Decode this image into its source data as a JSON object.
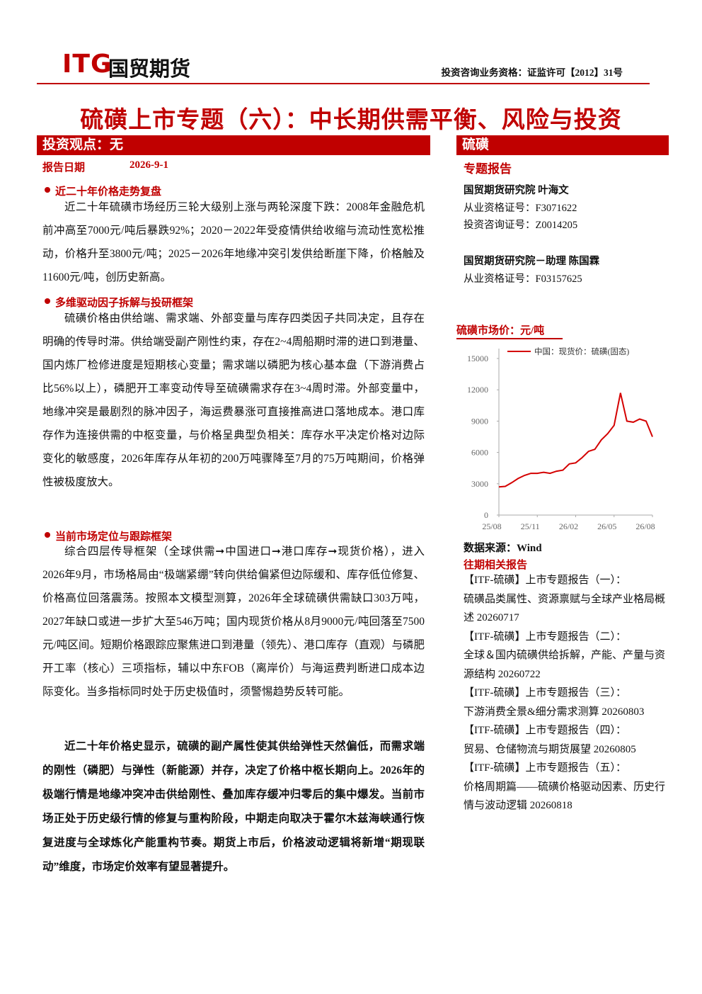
{
  "header": {
    "logo_en": "ITG",
    "logo_cn": "国贸期货",
    "license": "投资咨询业务资格：证监许可【2012】31号"
  },
  "title": "硫磺上市专题（六）：中长期供需平衡、风险与投资",
  "left": {
    "view_bar": "投资观点：无",
    "date_label": "报告日期",
    "date": "2026-9-1",
    "sections": [
      {
        "heading": "近二十年价格走势复盘",
        "text": "近二十年硫磺市场经历三轮大级别上涨与两轮深度下跌：2008年金融危机前冲高至7000元/吨后暴跌92%；2020－2022年受疫情供给收缩与流动性宽松推动，价格升至3800元/吨；2025－2026年地缘冲突引发供给断崖下降，价格触及11600元/吨，创历史新高。"
      },
      {
        "heading": "多维驱动因子拆解与投研框架",
        "text": "硫磺价格由供给端、需求端、外部变量与库存四类因子共同决定，且存在明确的传导时滞。供给端受副产刚性约束，存在2~4周船期时滞的进口到港量、国内炼厂检修进度是短期核心变量；需求端以磷肥为核心基本盘（下游消费占比56%以上），磷肥开工率变动传导至硫磺需求存在3~4周时滞。外部变量中，地缘冲突是最剧烈的脉冲因子，海运费暴涨可直接推高进口落地成本。港口库存作为连接供需的中枢变量，与价格呈典型负相关：库存水平决定价格对边际变化的敏感度，2026年库存从年初的200万吨骤降至7月的75万吨期间，价格弹性被极度放大。"
      },
      {
        "heading": "当前市场定位与跟踪框架",
        "text": "综合四层传导框架（全球供需➞中国进口➞港口库存➞现货价格），进入2026年9月，市场格局由“极端紧绷”转向供给偏紧但边际缓和、库存低位修复、价格高位回落震荡。按照本文模型测算，2026年全球硫磺供需缺口303万吨，2027年缺口或进一步扩大至546万吨；国内现货价格从8月9000元/吨回落至7500元/吨区间。短期价格跟踪应聚焦进口到港量（领先）、港口库存（直观）与磷肥开工率（核心）三项指标，辅以中东FOB（离岸价）与海运费判断进口成本边际变化。当多指标同时处于历史极值时，须警惕趋势反转可能。"
      }
    ],
    "summary": "近二十年价格史显示，硫磺的副产属性使其供给弹性天然偏低，而需求端的刚性（磷肥）与弹性（新能源）并存，决定了价格中枢长期向上。2026年的极端行情是地缘冲突冲击供给刚性、叠加库存缓冲归零后的集中爆发。当前市场正处于历史级行情的修复与重构阶段，中期走向取决于霍尔木兹海峡通行恢复进度与全球炼化产能重构节奏。期货上市后，价格波动逻辑将新增“期现联动”维度，市场定价效率有望显著提升。"
  },
  "right": {
    "category": "硫磺",
    "report_type": "专题报告",
    "authors": [
      {
        "name": "国贸期货研究院 叶海文",
        "lines": [
          "从业资格证号：F3071622",
          "投资咨询证号：Z0014205"
        ]
      },
      {
        "name": "国贸期货研究院－助理 陈国霖",
        "lines": [
          "从业资格证号：F03157625"
        ]
      }
    ],
    "chart_title": "硫磺市场价：元/吨",
    "source": "数据来源：Wind",
    "related_title": "往期相关报告",
    "related": [
      {
        "title": "【ITF-硫磺】上市专题报告（一）：",
        "body": "硫磺品类属性、资源禀赋与全球产业格局概述 20260717"
      },
      {
        "title": "【ITF-硫磺】上市专题报告（二）：",
        "body": "全球＆国内硫磺供给拆解，产能、产量与资源结构 20260722"
      },
      {
        "title": "【ITF-硫磺】上市专题报告（三）：",
        "body": "下游消费全景&细分需求测算 20260803"
      },
      {
        "title": "【ITF-硫磺】上市专题报告（四）：",
        "body": "贸易、仓储物流与期货展望 20260805"
      },
      {
        "title": "【ITF-硫磺】上市专题报告（五）：",
        "body": "价格周期篇——硫磺价格驱动因素、历史行情与波动逻辑 20260818"
      }
    ]
  },
  "chart_data": {
    "type": "line",
    "x": [
      "25/08",
      null,
      null,
      null,
      null,
      null,
      "25/11",
      null,
      null,
      null,
      null,
      null,
      "26/02",
      null,
      null,
      null,
      null,
      null,
      "26/05",
      null,
      null,
      null,
      null,
      null,
      "26/08"
    ],
    "series": [
      {
        "name": "中国：现货价：硫磺(固态)",
        "color": "#d40000",
        "values": [
          2700,
          2750,
          3100,
          3500,
          3800,
          4000,
          4000,
          4100,
          4000,
          4200,
          4300,
          4900,
          5000,
          5500,
          6100,
          6300,
          7200,
          7800,
          8600,
          11700,
          9000,
          8900,
          9200,
          9000,
          7500
        ]
      }
    ],
    "ylim": [
      0,
      15000
    ],
    "yticks": [
      0,
      3000,
      6000,
      9000,
      12000,
      15000
    ]
  }
}
